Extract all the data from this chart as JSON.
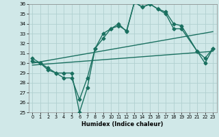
{
  "title": "",
  "xlabel": "Humidex (Indice chaleur)",
  "ylabel": "",
  "xlim": [
    -0.5,
    23.5
  ],
  "ylim": [
    25,
    36
  ],
  "xticks": [
    0,
    1,
    2,
    3,
    4,
    5,
    6,
    7,
    8,
    9,
    10,
    11,
    12,
    13,
    14,
    15,
    16,
    17,
    18,
    19,
    20,
    21,
    22,
    23
  ],
  "yticks": [
    25,
    26,
    27,
    28,
    29,
    30,
    31,
    32,
    33,
    34,
    35,
    36
  ],
  "background_color": "#d0e8e8",
  "grid_color": "#b0d0d0",
  "line_color": "#1a7060",
  "line_width": 1.0,
  "marker": "D",
  "marker_size": 2.5,
  "lines": [
    {
      "x": [
        0,
        1,
        2,
        3,
        4,
        5,
        6,
        7,
        8,
        9,
        10,
        11,
        12,
        13,
        14,
        15,
        16,
        17,
        18,
        19,
        21,
        22,
        23
      ],
      "y": [
        30.5,
        30.0,
        29.5,
        29.0,
        28.5,
        28.5,
        26.3,
        28.5,
        31.5,
        33.0,
        33.5,
        34.0,
        33.2,
        36.2,
        35.7,
        36.0,
        35.5,
        35.2,
        34.0,
        33.8,
        31.2,
        30.0,
        31.5
      ],
      "no_marker": false
    },
    {
      "x": [
        0,
        1,
        2,
        3,
        4,
        5,
        6,
        7,
        8,
        9,
        10,
        11,
        12,
        13,
        14,
        15,
        16,
        17,
        18,
        19,
        21,
        22,
        23
      ],
      "y": [
        30.2,
        30.0,
        29.3,
        29.0,
        29.0,
        29.0,
        25.0,
        27.5,
        31.5,
        32.5,
        33.5,
        33.8,
        33.3,
        36.2,
        35.7,
        36.0,
        35.5,
        35.0,
        33.5,
        33.5,
        31.2,
        30.5,
        31.5
      ],
      "no_marker": false
    },
    {
      "x": [
        0,
        23
      ],
      "y": [
        30.0,
        33.2
      ],
      "no_marker": true
    },
    {
      "x": [
        0,
        23
      ],
      "y": [
        29.8,
        31.2
      ],
      "no_marker": true
    }
  ]
}
